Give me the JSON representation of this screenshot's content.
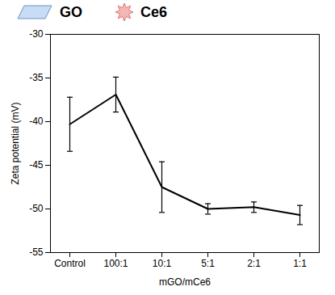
{
  "chart_data": {
    "type": "line",
    "x_label": "mGO/mCe6",
    "y_label": "Zeta potential (mV)",
    "categories": [
      "Control",
      "100:1",
      "10:1",
      "5:1",
      "2:1",
      "1:1"
    ],
    "values": [
      -40.3,
      -36.9,
      -47.5,
      -50.0,
      -49.8,
      -50.7
    ],
    "errors": [
      3.1,
      2.0,
      2.9,
      0.6,
      0.6,
      1.1
    ],
    "color": "#000000",
    "ylim": [
      -55,
      -30
    ],
    "yticks": [
      -55,
      -50,
      -45,
      -40,
      -35,
      -30
    ],
    "legend_labels": [
      "GO",
      "Ce6"
    ],
    "legend_colors": [
      "#c9dcf5",
      "#f4b8b4"
    ]
  }
}
